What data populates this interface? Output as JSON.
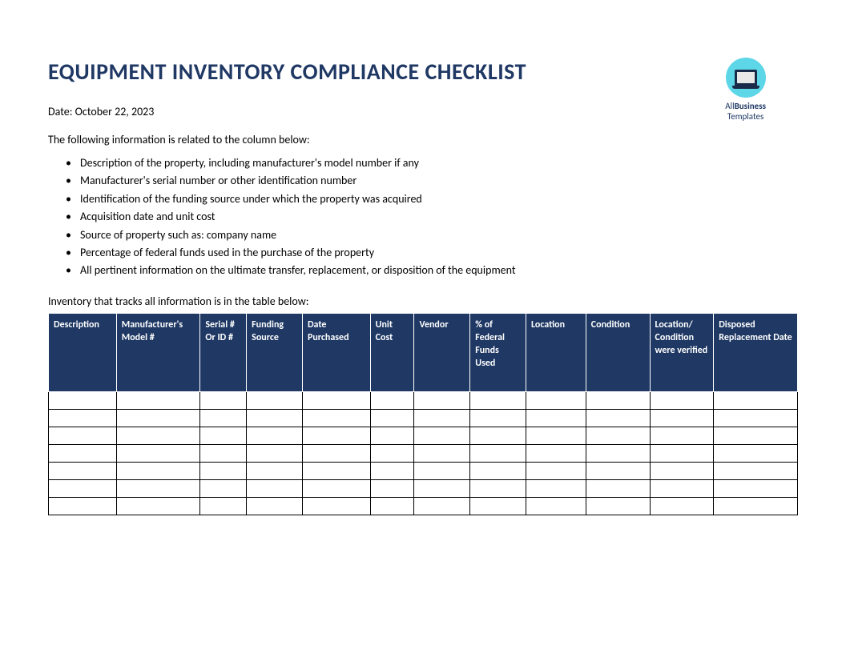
{
  "title": "EQUIPMENT INVENTORY COMPLIANCE CHECKLIST",
  "logo": {
    "line1_normal": "All",
    "line1_bold": "Business",
    "line2": "Templates"
  },
  "date_label": "Date:",
  "date_value": "October 22, 2023",
  "intro_text": "The following information is related to the column below:",
  "bullets": [
    "Description of the property, including manufacturer's model number if any",
    "Manufacturer's serial number or other identification number",
    "Identification of the funding source under which the property was acquired",
    "Acquisition date and unit cost",
    "Source of property such as: company name",
    "Percentage of federal funds used in the purchase of the property",
    "All pertinent information on the ultimate transfer, replacement, or disposition of the equipment"
  ],
  "table_intro": "Inventory that tracks all information is in the table below:",
  "table": {
    "header_bg": "#1f3864",
    "header_text_color": "#ffffff",
    "border_color": "#000000",
    "columns": [
      "Description",
      "Manufacturer's Model #",
      "Serial # Or ID #",
      "Funding Source",
      "Date Purchased",
      "Unit Cost",
      "Vendor",
      "% of Federal Funds Used",
      "Location",
      "Condition",
      "Location/ Condition were verified",
      "Disposed Replacement Date"
    ],
    "empty_rows": 7
  },
  "colors": {
    "title_color": "#1f3864",
    "background": "#ffffff",
    "text_color": "#000000",
    "logo_circle": "#5dd6e8"
  }
}
